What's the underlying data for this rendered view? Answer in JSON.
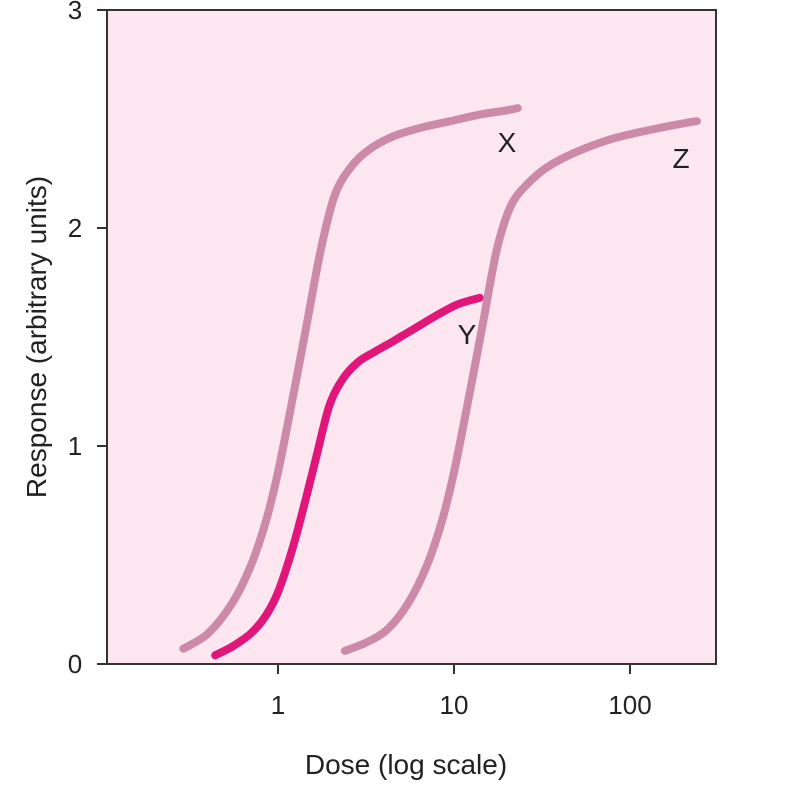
{
  "chart_data": {
    "type": "line",
    "xlabel": "Dose (log scale)",
    "ylabel": "Response (arbitrary units)",
    "x_scale": "log",
    "xlim": [
      0.15,
      300
    ],
    "ylim": [
      0,
      3
    ],
    "x_ticks": [
      {
        "value": 1,
        "label": "1"
      },
      {
        "value": 10,
        "label": "10"
      },
      {
        "value": 100,
        "label": "100"
      }
    ],
    "y_ticks": [
      {
        "value": 0,
        "label": "0"
      },
      {
        "value": 1,
        "label": "1"
      },
      {
        "value": 2,
        "label": "2"
      },
      {
        "value": 3,
        "label": "3"
      }
    ],
    "grid": false,
    "plot_background": "#fce6ef",
    "series": [
      {
        "name": "X",
        "color": "#cc8aa8",
        "x": [
          0.29,
          0.4,
          0.55,
          0.7,
          0.85,
          1.0,
          1.2,
          1.45,
          1.75,
          2.1,
          2.6,
          3.3,
          4.5,
          6.5,
          9.5,
          14,
          20,
          23
        ],
        "y": [
          0.07,
          0.14,
          0.28,
          0.45,
          0.65,
          0.88,
          1.2,
          1.55,
          1.9,
          2.15,
          2.28,
          2.36,
          2.42,
          2.46,
          2.49,
          2.52,
          2.54,
          2.55
        ]
      },
      {
        "name": "Y",
        "color": "#e0167a",
        "x": [
          0.44,
          0.55,
          0.7,
          0.85,
          1.0,
          1.2,
          1.4,
          1.65,
          1.95,
          2.3,
          2.8,
          3.5,
          4.5,
          6,
          8,
          10.5,
          14
        ],
        "y": [
          0.04,
          0.08,
          0.14,
          0.22,
          0.33,
          0.52,
          0.72,
          0.95,
          1.18,
          1.3,
          1.38,
          1.43,
          1.48,
          1.54,
          1.6,
          1.65,
          1.68
        ]
      },
      {
        "name": "Z",
        "color": "#cc8aa8",
        "x": [
          2.4,
          3.2,
          4.2,
          5.5,
          7,
          8.5,
          10,
          12,
          14.5,
          17.5,
          21,
          26,
          34,
          50,
          80,
          130,
          200,
          240
        ],
        "y": [
          0.06,
          0.1,
          0.16,
          0.28,
          0.45,
          0.65,
          0.88,
          1.2,
          1.55,
          1.9,
          2.1,
          2.2,
          2.28,
          2.35,
          2.41,
          2.45,
          2.48,
          2.49
        ]
      }
    ]
  }
}
